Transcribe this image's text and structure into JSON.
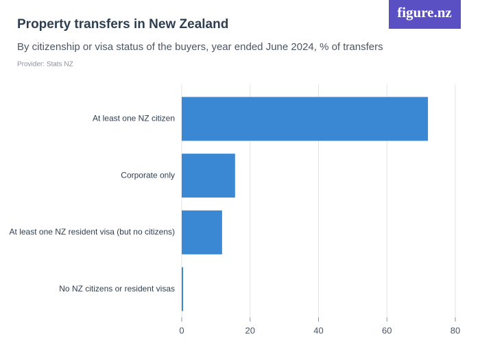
{
  "brand": "figure.nz",
  "chart_data": {
    "type": "bar",
    "orientation": "horizontal",
    "title": "Property transfers in New Zealand",
    "subtitle": "By citizenship or visa status of the buyers, year ended June 2024, % of transfers",
    "provider": "Provider: Stats NZ",
    "categories": [
      "At least one NZ citizen",
      "Corporate only",
      "At least one NZ resident visa (but no citizens)",
      "No NZ citizens or resident visas"
    ],
    "values": [
      72,
      15.6,
      11.8,
      0.4
    ],
    "color": "#3a87d4",
    "xlim": [
      0,
      80
    ],
    "xticks": [
      0,
      20,
      40,
      60,
      80
    ],
    "grid": true
  }
}
